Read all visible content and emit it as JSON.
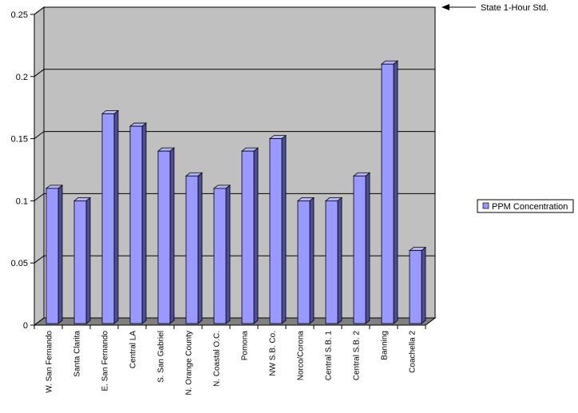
{
  "chart_data": {
    "type": "bar",
    "style": "3d-column",
    "categories": [
      "W. San Fernando",
      "Santa Clarita",
      "E. San Fernando",
      "Central LA",
      "S. San Gabriel",
      "N. Orange County",
      "N. Coastal O.C.",
      "Pomona",
      "NW S.B. Co.",
      "Norco/Corona",
      "Central S.B. 1",
      "Central S.B. 2",
      "Banning",
      "Coachella 2"
    ],
    "series": [
      {
        "name": "PPM Concentration",
        "values": [
          0.11,
          0.1,
          0.17,
          0.16,
          0.14,
          0.12,
          0.11,
          0.14,
          0.15,
          0.1,
          0.1,
          0.12,
          0.21,
          0.06
        ]
      }
    ],
    "yticks": [
      "0",
      "0.05",
      "0.1",
      "0.15",
      "0.2",
      "0.25"
    ],
    "ylim": [
      0,
      0.25
    ],
    "grid": true,
    "legend_position": "right",
    "annotation": {
      "text": "State 1-Hour Std.",
      "arrow": "left"
    },
    "colors": {
      "bar_front": "#9999ff",
      "bar_side": "#4d4d99",
      "bar_top": "#b3b3ff",
      "wall": "#c0c0c0",
      "floor": "#808080",
      "gridline": "#000000"
    }
  }
}
